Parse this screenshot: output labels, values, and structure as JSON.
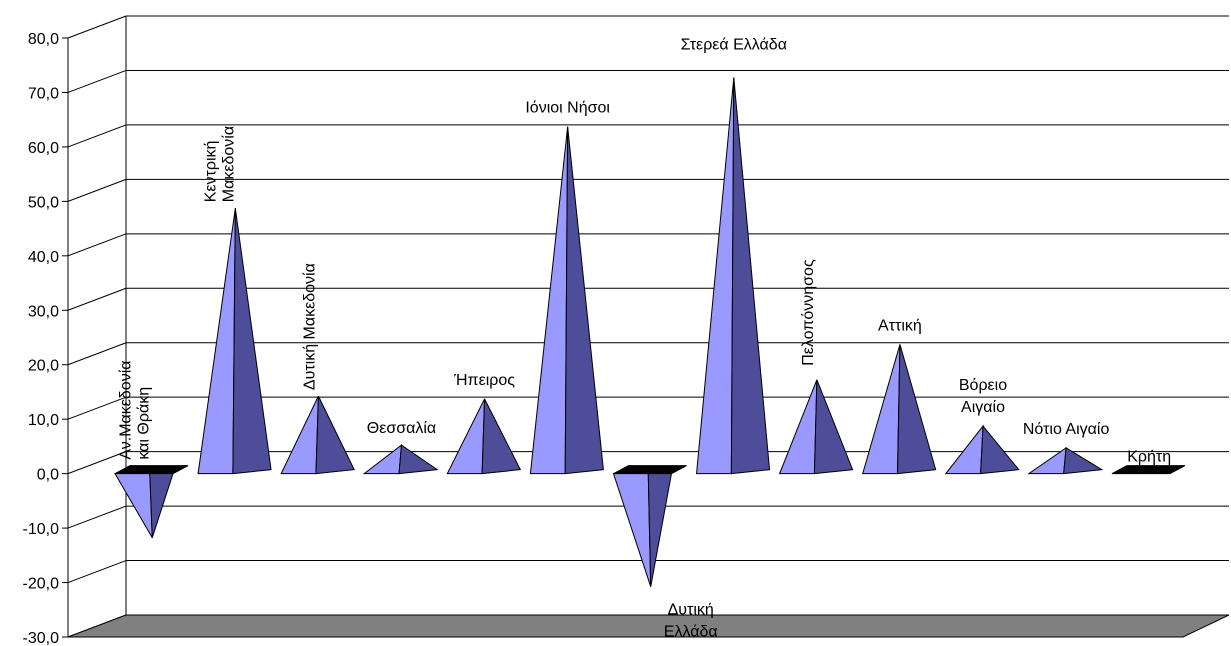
{
  "chart_data": {
    "type": "bar",
    "style": "3d-pyramid",
    "title": "",
    "xlabel": "",
    "ylabel": "",
    "ylim": [
      -30,
      80
    ],
    "y_ticks": [
      "80,0",
      "70,0",
      "60,0",
      "50,0",
      "40,0",
      "30,0",
      "20,0",
      "10,0",
      "0,0",
      "-10,0",
      "-20,0",
      "-30,0"
    ],
    "y_tick_values": [
      80,
      70,
      60,
      50,
      40,
      30,
      20,
      10,
      0,
      -10,
      -20,
      -30
    ],
    "grid": true,
    "legend": "none",
    "colors": {
      "pyramid_front": "#9999ff",
      "pyramid_side": "#4d4d99",
      "floor": "#808080",
      "zero_square": "#000000"
    },
    "categories": [
      "Αν.Μακεδονία και Θράκη",
      "Κεντρική Μακεδονία",
      "Δυτική Μακεδονία",
      "Θεσσαλία",
      "Ήπειρος",
      "Ιόνιοι Νήσοι",
      "Δυτική Ελλάδα",
      "Στερεά Ελλάδα",
      "Πελοπόννησος",
      "Αττική",
      "Βόρειο Αιγαίο",
      "Νότιο Αιγαίο",
      "Κρήτη"
    ],
    "values": [
      -12.5,
      48.0,
      13.5,
      4.5,
      13.0,
      63.0,
      -21.5,
      72.0,
      16.5,
      23.0,
      8.0,
      4.0,
      0.0
    ],
    "series": [
      {
        "values": [
          -12.5,
          48.0,
          13.5,
          4.5,
          13.0,
          63.0,
          -21.5,
          72.0,
          16.5,
          23.0,
          8.0,
          4.0,
          0.0
        ]
      }
    ]
  }
}
